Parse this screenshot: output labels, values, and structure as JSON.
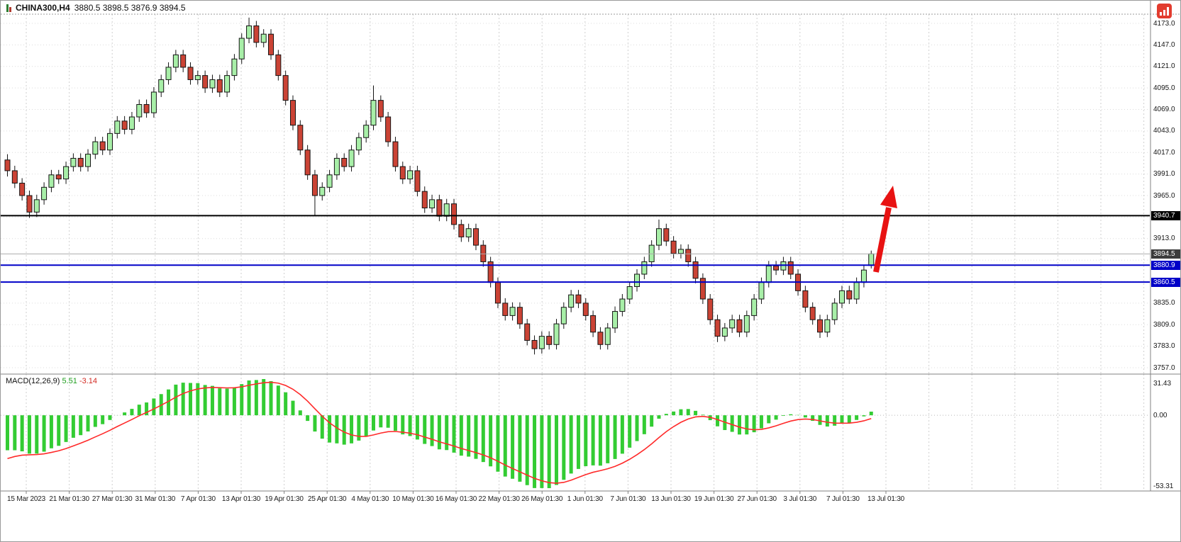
{
  "header": {
    "symbol": "CHINA300,H4",
    "ohlc": "3880.5 3898.5 3876.9 3894.5"
  },
  "axis": {
    "price_labels": [
      "4173.0",
      "4147.0",
      "4121.0",
      "4095.0",
      "4069.0",
      "4043.0",
      "4017.0",
      "3991.0",
      "3965.0",
      "3913.0",
      "3835.0",
      "3809.0",
      "3783.0",
      "3757.0"
    ],
    "badges": [
      {
        "text": "3940.7",
        "color": "#000000"
      },
      {
        "text": "3894.5",
        "color": "#3c3c3c"
      },
      {
        "text": "3880.9",
        "color": "#0000c8"
      },
      {
        "text": "3860.5",
        "color": "#0000c8"
      }
    ]
  },
  "colors": {
    "up": "#a8efa8",
    "down": "#cb4335",
    "outline": "#141414",
    "hist": "#33cc33",
    "signal": "#ff2a2a",
    "grid_dot": "#dcdcdc",
    "grid_dash": "#cfcfcf",
    "arrow": "#e81212",
    "level_black": "#000000",
    "level_blue": "#0000c8",
    "bid_line": "#ababab"
  },
  "chart_data": [
    {
      "type": "candlestick",
      "title": "CHINA300,H4",
      "symbol": "CHINA300",
      "timeframe": "H4",
      "ylim": [
        3757.0,
        4173.0
      ],
      "y_tick_step": 26,
      "last_ohlc": {
        "open": 3880.5,
        "high": 3898.5,
        "low": 3876.9,
        "close": 3894.5
      },
      "x_labels": [
        "15 Mar 2023",
        "21 Mar 01:30",
        "27 Mar 01:30",
        "31 Mar 01:30",
        "7 Apr 01:30",
        "13 Apr 01:30",
        "19 Apr 01:30",
        "25 Apr 01:30",
        "4 May 01:30",
        "10 May 01:30",
        "16 May 01:30",
        "22 May 01:30",
        "26 May 01:30",
        "1 Jun 01:30",
        "7 Jun 01:30",
        "13 Jun 01:30",
        "19 Jun 01:30",
        "27 Jun 01:30",
        "3 Jul 01:30",
        "7 Jul 01:30",
        "13 Jul 01:30"
      ],
      "levels": [
        {
          "price": 3940.7,
          "color": "#000000",
          "width": 2,
          "name": "resistance-line"
        },
        {
          "price": 3894.5,
          "color": "#ababab",
          "width": 1,
          "name": "bid-price-line"
        },
        {
          "price": 3880.9,
          "color": "#0000c8",
          "width": 2,
          "name": "support-line-1"
        },
        {
          "price": 3860.5,
          "color": "#0000c8",
          "width": 2,
          "name": "support-line-2"
        }
      ],
      "annotations": [
        {
          "type": "up-arrow",
          "color": "#e81212"
        }
      ],
      "candles": [
        [
          4008,
          4015,
          3988,
          3995
        ],
        [
          3995,
          4001,
          3974,
          3980
        ],
        [
          3980,
          3986,
          3959,
          3965
        ],
        [
          3965,
          3971,
          3938,
          3945
        ],
        [
          3945,
          3966,
          3939,
          3960
        ],
        [
          3960,
          3981,
          3954,
          3975
        ],
        [
          3975,
          3996,
          3969,
          3990
        ],
        [
          3990,
          3996,
          3979,
          3985
        ],
        [
          3985,
          4006,
          3979,
          4000
        ],
        [
          4000,
          4016,
          3994,
          4010
        ],
        [
          4010,
          4016,
          3994,
          4000
        ],
        [
          4000,
          4021,
          3994,
          4015
        ],
        [
          4015,
          4036,
          4009,
          4030
        ],
        [
          4030,
          4036,
          4014,
          4020
        ],
        [
          4020,
          4046,
          4014,
          4040
        ],
        [
          4040,
          4061,
          4034,
          4055
        ],
        [
          4055,
          4061,
          4039,
          4045
        ],
        [
          4045,
          4066,
          4039,
          4060
        ],
        [
          4060,
          4081,
          4054,
          4075
        ],
        [
          4075,
          4081,
          4059,
          4065
        ],
        [
          4065,
          4096,
          4059,
          4090
        ],
        [
          4090,
          4111,
          4084,
          4105
        ],
        [
          4105,
          4126,
          4099,
          4120
        ],
        [
          4120,
          4141,
          4114,
          4135
        ],
        [
          4135,
          4141,
          4114,
          4120
        ],
        [
          4120,
          4126,
          4099,
          4105
        ],
        [
          4105,
          4116,
          4099,
          4110
        ],
        [
          4110,
          4116,
          4089,
          4095
        ],
        [
          4095,
          4111,
          4089,
          4105
        ],
        [
          4105,
          4111,
          4084,
          4090
        ],
        [
          4090,
          4116,
          4084,
          4110
        ],
        [
          4110,
          4136,
          4104,
          4130
        ],
        [
          4130,
          4161,
          4124,
          4155
        ],
        [
          4155,
          4180,
          4149,
          4170
        ],
        [
          4170,
          4176,
          4144,
          4150
        ],
        [
          4150,
          4166,
          4144,
          4160
        ],
        [
          4160,
          4166,
          4129,
          4135
        ],
        [
          4135,
          4141,
          4104,
          4110
        ],
        [
          4110,
          4116,
          4074,
          4080
        ],
        [
          4080,
          4086,
          4044,
          4050
        ],
        [
          4050,
          4056,
          4014,
          4020
        ],
        [
          4020,
          4026,
          3984,
          3990
        ],
        [
          3990,
          3996,
          3941,
          3965
        ],
        [
          3965,
          3981,
          3959,
          3975
        ],
        [
          3975,
          3996,
          3969,
          3990
        ],
        [
          3990,
          4016,
          3984,
          4010
        ],
        [
          4010,
          4016,
          3994,
          4000
        ],
        [
          4000,
          4026,
          3994,
          4020
        ],
        [
          4020,
          4041,
          4014,
          4035
        ],
        [
          4035,
          4056,
          4029,
          4050
        ],
        [
          4050,
          4098,
          4044,
          4080
        ],
        [
          4080,
          4086,
          4054,
          4060
        ],
        [
          4060,
          4066,
          4024,
          4030
        ],
        [
          4030,
          4036,
          3994,
          4000
        ],
        [
          4000,
          4006,
          3979,
          3985
        ],
        [
          3985,
          4001,
          3979,
          3995
        ],
        [
          3995,
          4001,
          3964,
          3970
        ],
        [
          3970,
          3976,
          3944,
          3950
        ],
        [
          3950,
          3966,
          3944,
          3960
        ],
        [
          3960,
          3966,
          3934,
          3940
        ],
        [
          3940,
          3961,
          3934,
          3955
        ],
        [
          3955,
          3961,
          3924,
          3930
        ],
        [
          3930,
          3936,
          3909,
          3915
        ],
        [
          3915,
          3931,
          3909,
          3925
        ],
        [
          3925,
          3931,
          3899,
          3905
        ],
        [
          3905,
          3911,
          3879,
          3885
        ],
        [
          3885,
          3891,
          3854,
          3860
        ],
        [
          3860,
          3866,
          3829,
          3835
        ],
        [
          3835,
          3841,
          3814,
          3820
        ],
        [
          3820,
          3836,
          3814,
          3830
        ],
        [
          3830,
          3836,
          3804,
          3810
        ],
        [
          3810,
          3816,
          3784,
          3790
        ],
        [
          3790,
          3796,
          3773,
          3780
        ],
        [
          3780,
          3801,
          3774,
          3795
        ],
        [
          3795,
          3801,
          3779,
          3785
        ],
        [
          3785,
          3816,
          3779,
          3810
        ],
        [
          3810,
          3836,
          3804,
          3830
        ],
        [
          3830,
          3851,
          3824,
          3845
        ],
        [
          3845,
          3851,
          3829,
          3835
        ],
        [
          3835,
          3841,
          3814,
          3820
        ],
        [
          3820,
          3826,
          3794,
          3800
        ],
        [
          3800,
          3806,
          3779,
          3785
        ],
        [
          3785,
          3811,
          3779,
          3805
        ],
        [
          3805,
          3831,
          3799,
          3825
        ],
        [
          3825,
          3846,
          3819,
          3840
        ],
        [
          3840,
          3861,
          3834,
          3855
        ],
        [
          3855,
          3876,
          3849,
          3870
        ],
        [
          3870,
          3891,
          3864,
          3885
        ],
        [
          3885,
          3911,
          3879,
          3905
        ],
        [
          3905,
          3936,
          3899,
          3925
        ],
        [
          3925,
          3931,
          3904,
          3910
        ],
        [
          3910,
          3916,
          3889,
          3895
        ],
        [
          3895,
          3906,
          3889,
          3900
        ],
        [
          3900,
          3906,
          3879,
          3885
        ],
        [
          3885,
          3891,
          3859,
          3865
        ],
        [
          3865,
          3871,
          3834,
          3840
        ],
        [
          3840,
          3846,
          3809,
          3815
        ],
        [
          3815,
          3821,
          3788,
          3795
        ],
        [
          3795,
          3811,
          3789,
          3805
        ],
        [
          3805,
          3821,
          3799,
          3815
        ],
        [
          3815,
          3821,
          3794,
          3800
        ],
        [
          3800,
          3826,
          3794,
          3820
        ],
        [
          3820,
          3846,
          3814,
          3840
        ],
        [
          3840,
          3866,
          3834,
          3860
        ],
        [
          3860,
          3886,
          3854,
          3880
        ],
        [
          3880,
          3886,
          3869,
          3875
        ],
        [
          3875,
          3891,
          3869,
          3885
        ],
        [
          3885,
          3891,
          3864,
          3870
        ],
        [
          3870,
          3876,
          3844,
          3850
        ],
        [
          3850,
          3856,
          3824,
          3830
        ],
        [
          3830,
          3836,
          3809,
          3815
        ],
        [
          3815,
          3821,
          3793,
          3800
        ],
        [
          3800,
          3821,
          3794,
          3815
        ],
        [
          3815,
          3841,
          3809,
          3835
        ],
        [
          3835,
          3856,
          3829,
          3850
        ],
        [
          3850,
          3856,
          3834,
          3840
        ],
        [
          3840,
          3866,
          3834,
          3860
        ],
        [
          3860,
          3881,
          3854,
          3875
        ],
        [
          3880.5,
          3898.5,
          3876.9,
          3894.5
        ]
      ]
    },
    {
      "type": "bar",
      "subtype": "macd-histogram-with-signal-line",
      "label": "MACD(12,26,9)",
      "macd_value": "5.51",
      "signal_value": "-3.14",
      "y_ticks": [
        "31.43",
        "0.00",
        "-53.31"
      ],
      "note": "green histogram = MACD line (EMA12-EMA26 of closes), red line = signal"
    }
  ]
}
